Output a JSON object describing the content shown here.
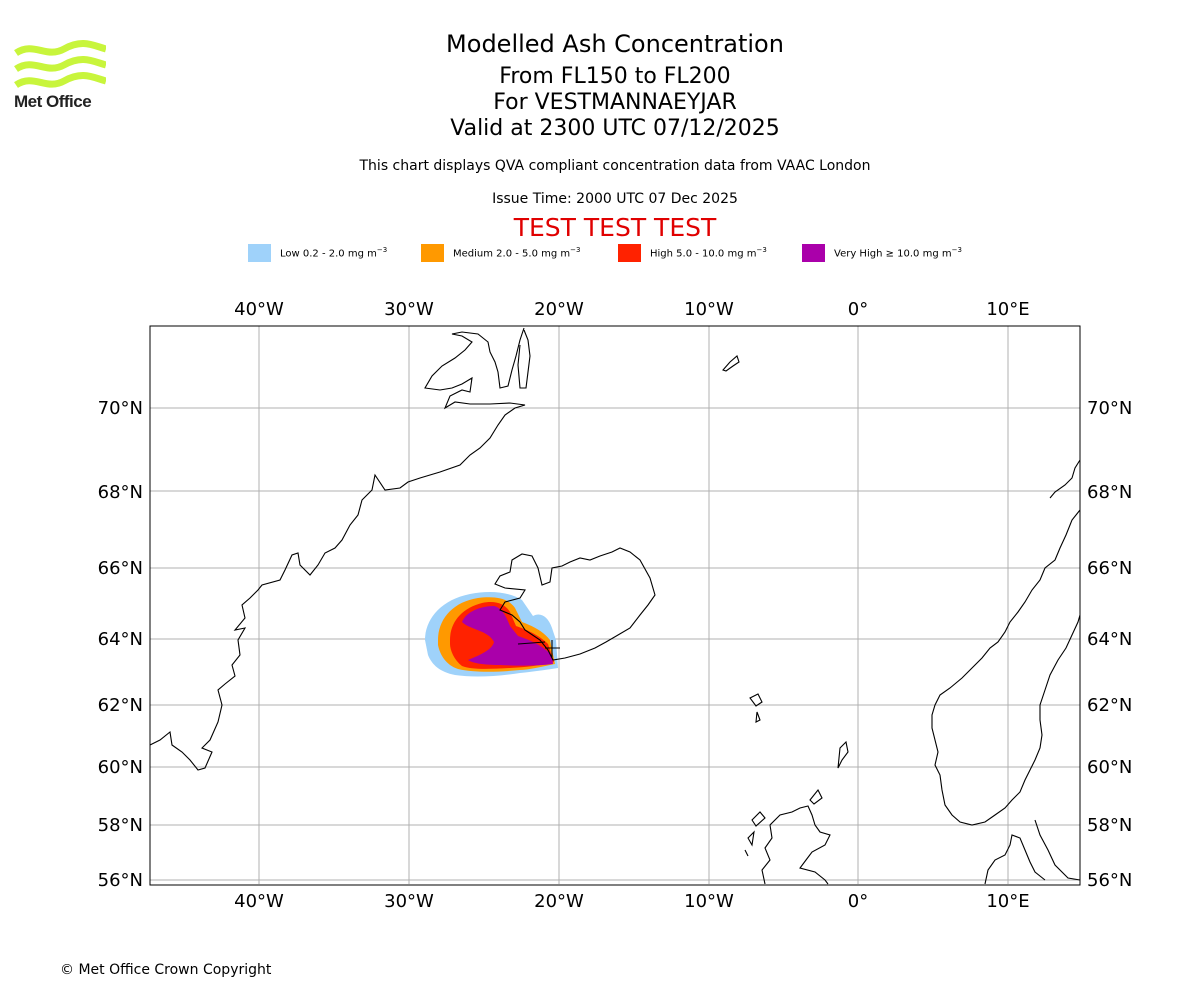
{
  "brand": {
    "name": "Met Office",
    "logo_color": "#c8f53c"
  },
  "titles": {
    "main": "Modelled Ash Concentration",
    "levels": "From FL150 to FL200",
    "location": "For VESTMANNAEYJAR",
    "valid": "Valid at 2300 UTC 07/12/2025",
    "description": "This chart displays QVA compliant concentration data from VAAC London",
    "issue": "Issue Time: 2000 UTC 07 Dec 2025",
    "test_banner": "TEST TEST TEST",
    "test_color": "#e00000"
  },
  "legend": [
    {
      "label_prefix": "Low 0.2 - 2.0 mg m",
      "exp": "−3",
      "color": "#9fd2fa"
    },
    {
      "label_prefix": "Medium 2.0 - 5.0 mg m",
      "exp": "−3",
      "color": "#ff9900"
    },
    {
      "label_prefix": "High 5.0 - 10.0 mg m",
      "exp": "−3",
      "color": "#ff2200"
    },
    {
      "label_prefix": "Very High  ≥  10.0 mg m",
      "exp": "−3",
      "color": "#aa00aa"
    }
  ],
  "map": {
    "longitude_labels": [
      "40°W",
      "30°W",
      "20°W",
      "10°W",
      "0°",
      "10°E"
    ],
    "latitude_labels": [
      "70°N",
      "68°N",
      "66°N",
      "64°N",
      "62°N",
      "60°N",
      "58°N",
      "56°N"
    ],
    "volcano_marker": "Vestmannaeyjar",
    "gridline_color": "#b0b0b0"
  },
  "footer": {
    "copyright": "© Met Office Crown Copyright"
  }
}
